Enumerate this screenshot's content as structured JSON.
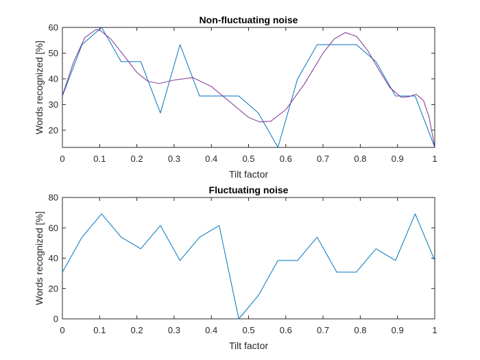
{
  "chart_data": [
    {
      "type": "line",
      "title": "Non-fluctuating noise",
      "xlabel": "Tilt factor",
      "ylabel": "Words recognized [%]",
      "xlim": [
        0,
        1
      ],
      "ylim": [
        13.3,
        60
      ],
      "xticks": [
        0,
        0.1,
        0.2,
        0.3,
        0.4,
        0.5,
        0.6,
        0.7,
        0.8,
        0.9,
        1
      ],
      "xtick_labels": [
        "0",
        "0.1",
        "0.2",
        "0.3",
        "0.4",
        "0.5",
        "0.6",
        "0.7",
        "0.8",
        "0.9",
        "1"
      ],
      "yticks": [
        20,
        30,
        40,
        50,
        60
      ],
      "ytick_labels": [
        "20",
        "30",
        "40",
        "50",
        "60"
      ],
      "grid": false,
      "series": [
        {
          "kind": "measured",
          "color": "#0072BD",
          "x": [
            0,
            0.0526,
            0.1053,
            0.1579,
            0.2105,
            0.2632,
            0.3158,
            0.3684,
            0.4211,
            0.4737,
            0.5263,
            0.5789,
            0.6316,
            0.6842,
            0.7368,
            0.7895,
            0.8421,
            0.8947,
            0.9474,
            1
          ],
          "values": [
            33.3,
            53.3,
            60,
            46.7,
            46.7,
            26.7,
            53.3,
            33.3,
            33.3,
            33.3,
            26.7,
            13.3,
            40,
            53.3,
            53.3,
            53.3,
            46.7,
            33.3,
            33.3,
            13.3
          ]
        },
        {
          "kind": "fit",
          "color": "#7E2F8E",
          "x": [
            0,
            0.03,
            0.06,
            0.09,
            0.1,
            0.13,
            0.16,
            0.2,
            0.23,
            0.26,
            0.3,
            0.35,
            0.4,
            0.45,
            0.5,
            0.53,
            0.56,
            0.6,
            0.65,
            0.7,
            0.73,
            0.76,
            0.79,
            0.82,
            0.85,
            0.88,
            0.91,
            0.93,
            0.95,
            0.97,
            0.985,
            1
          ],
          "values": [
            33.5,
            46.5,
            56,
            59.2,
            59,
            55.5,
            50,
            42.5,
            39,
            38.2,
            39.5,
            40.5,
            37,
            31,
            25,
            23.2,
            23.5,
            28,
            38,
            50,
            55.5,
            58,
            56.5,
            51,
            43.5,
            36.5,
            32.8,
            33,
            34,
            31.5,
            25,
            13.3
          ]
        }
      ]
    },
    {
      "type": "line",
      "title": "Fluctuating noise",
      "xlabel": "Tilt factor",
      "ylabel": "Words recognized [%]",
      "xlim": [
        0,
        1
      ],
      "ylim": [
        0,
        80
      ],
      "xticks": [
        0,
        0.1,
        0.2,
        0.3,
        0.4,
        0.5,
        0.6,
        0.7,
        0.8,
        0.9,
        1
      ],
      "xtick_labels": [
        "0",
        "0.1",
        "0.2",
        "0.3",
        "0.4",
        "0.5",
        "0.6",
        "0.7",
        "0.8",
        "0.9",
        "1"
      ],
      "yticks": [
        0,
        20,
        40,
        60,
        80
      ],
      "ytick_labels": [
        "0",
        "20",
        "40",
        "60",
        "80"
      ],
      "grid": false,
      "series": [
        {
          "kind": "measured",
          "color": "#0072BD",
          "x": [
            0,
            0.0526,
            0.1053,
            0.1579,
            0.2105,
            0.2632,
            0.3158,
            0.3684,
            0.4211,
            0.4737,
            0.5263,
            0.5789,
            0.6316,
            0.6842,
            0.7368,
            0.7895,
            0.8421,
            0.8947,
            0.9474,
            1
          ],
          "values": [
            30.8,
            53.8,
            69.2,
            53.8,
            46.2,
            61.5,
            38.5,
            53.8,
            61.5,
            0,
            15.4,
            38.5,
            38.5,
            53.8,
            30.8,
            30.8,
            46.2,
            38.5,
            69.2,
            38.5
          ]
        }
      ]
    }
  ]
}
